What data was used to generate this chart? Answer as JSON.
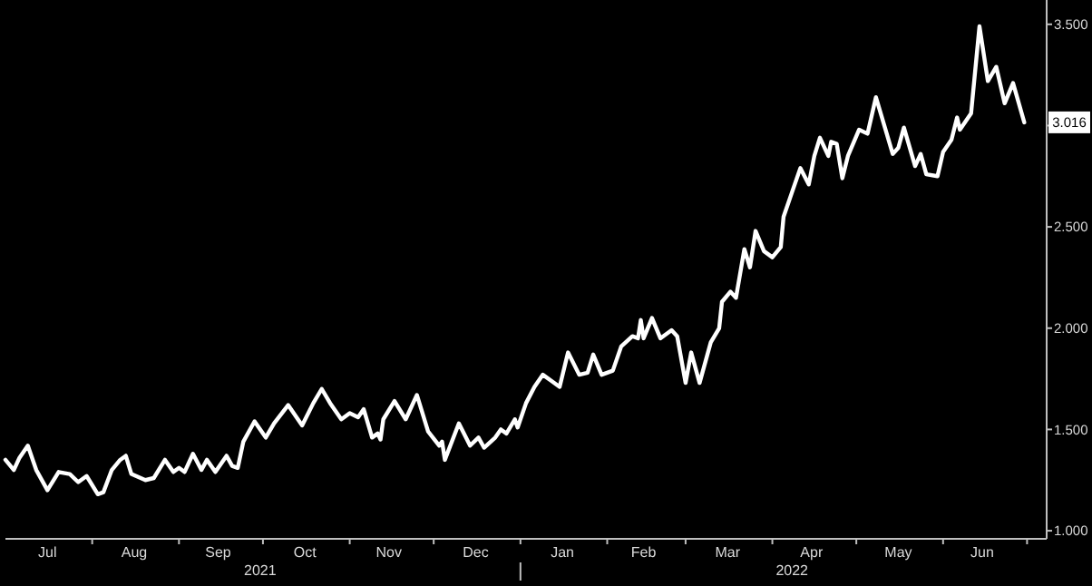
{
  "chart_data": {
    "type": "line",
    "xlim": [
      "2021-07-01",
      "2022-07-08"
    ],
    "ylim": [
      0.96,
      3.62
    ],
    "yticks": [
      {
        "value": 1,
        "label": "1.000"
      },
      {
        "value": 1.5,
        "label": "1.500"
      },
      {
        "value": 2,
        "label": "2.000"
      },
      {
        "value": 2.5,
        "label": "2.500"
      },
      {
        "value": 3,
        "label": null
      },
      {
        "value": 3.5,
        "label": "3.500"
      }
    ],
    "xticks": [
      {
        "value": "2021-07-16",
        "label": "Jul"
      },
      {
        "value": "2021-08-01",
        "label": null
      },
      {
        "value": "2021-08-16",
        "label": "Aug"
      },
      {
        "value": "2021-09-01",
        "label": null
      },
      {
        "value": "2021-09-15",
        "label": "Sep"
      },
      {
        "value": "2021-10-01",
        "label": null
      },
      {
        "value": "2021-10-16",
        "label": "Oct"
      },
      {
        "value": "2021-11-01",
        "label": null
      },
      {
        "value": "2021-11-15",
        "label": "Nov"
      },
      {
        "value": "2021-12-01",
        "label": null
      },
      {
        "value": "2021-12-16",
        "label": "Dec"
      },
      {
        "value": "2022-01-01",
        "label": null
      },
      {
        "value": "2022-01-16",
        "label": "Jan"
      },
      {
        "value": "2022-02-01",
        "label": null
      },
      {
        "value": "2022-02-14",
        "label": "Feb"
      },
      {
        "value": "2022-03-01",
        "label": null
      },
      {
        "value": "2022-03-16",
        "label": "Mar"
      },
      {
        "value": "2022-04-01",
        "label": null
      },
      {
        "value": "2022-04-15",
        "label": "Apr"
      },
      {
        "value": "2022-05-01",
        "label": null
      },
      {
        "value": "2022-05-16",
        "label": "May"
      },
      {
        "value": "2022-06-01",
        "label": null
      },
      {
        "value": "2022-06-15",
        "label": "Jun"
      },
      {
        "value": "2022-07-01",
        "label": null
      }
    ],
    "x2lim": [
      "2021-07-01",
      "2022-07-08"
    ],
    "x2ticks": [
      {
        "value": "2021-09-30",
        "label": "2021"
      },
      {
        "value": "2022-01-01",
        "label": null
      },
      {
        "value": "2022-04-08",
        "label": "2022"
      }
    ],
    "grid": false,
    "marker": "none",
    "line_style": "solid",
    "annotations": [
      {
        "text": "3.016",
        "x": "2022-06-30",
        "y": 3.016
      }
    ],
    "x": [
      "2021-07-01",
      "2021-07-04",
      "2021-07-06",
      "2021-07-09",
      "2021-07-12",
      "2021-07-16",
      "2021-07-20",
      "2021-07-24",
      "2021-07-27",
      "2021-07-30",
      "2021-08-03",
      "2021-08-05",
      "2021-08-08",
      "2021-08-11",
      "2021-08-13",
      "2021-08-15",
      "2021-08-20",
      "2021-08-23",
      "2021-08-27",
      "2021-08-30",
      "2021-09-01",
      "2021-09-03",
      "2021-09-06",
      "2021-09-09",
      "2021-09-11",
      "2021-09-14",
      "2021-09-18",
      "2021-09-20",
      "2021-09-22",
      "2021-09-24",
      "2021-09-28",
      "2021-10-02",
      "2021-10-05",
      "2021-10-10",
      "2021-10-15",
      "2021-10-19",
      "2021-10-22",
      "2021-10-25",
      "2021-10-29",
      "2021-11-01",
      "2021-11-04",
      "2021-11-06",
      "2021-11-09",
      "2021-11-11",
      "2021-11-12",
      "2021-11-13",
      "2021-11-17",
      "2021-11-21",
      "2021-11-25",
      "2021-11-29",
      "2021-12-03",
      "2021-12-04",
      "2021-12-05",
      "2021-12-10",
      "2021-12-14",
      "2021-12-17",
      "2021-12-19",
      "2021-12-23",
      "2021-12-25",
      "2021-12-27",
      "2021-12-30",
      "2021-12-31",
      "2022-01-03",
      "2022-01-06",
      "2022-01-09",
      "2022-01-12",
      "2022-01-13",
      "2022-01-15",
      "2022-01-18",
      "2022-01-22",
      "2022-01-25",
      "2022-01-27",
      "2022-01-30",
      "2022-02-03",
      "2022-02-06",
      "2022-02-10",
      "2022-02-12",
      "2022-02-13",
      "2022-02-14",
      "2022-02-17",
      "2022-02-20",
      "2022-02-24",
      "2022-02-26",
      "2022-03-01",
      "2022-03-03",
      "2022-03-06",
      "2022-03-10",
      "2022-03-13",
      "2022-03-14",
      "2022-03-17",
      "2022-03-19",
      "2022-03-22",
      "2022-03-24",
      "2022-03-26",
      "2022-03-29",
      "2022-04-01",
      "2022-04-04",
      "2022-04-05",
      "2022-04-08",
      "2022-04-11",
      "2022-04-14",
      "2022-04-16",
      "2022-04-18",
      "2022-04-21",
      "2022-04-22",
      "2022-04-24",
      "2022-04-26",
      "2022-04-28",
      "2022-05-02",
      "2022-05-05",
      "2022-05-08",
      "2022-05-11",
      "2022-05-14",
      "2022-05-16",
      "2022-05-18",
      "2022-05-22",
      "2022-05-24",
      "2022-05-26",
      "2022-05-30",
      "2022-06-01",
      "2022-06-04",
      "2022-06-06",
      "2022-06-07",
      "2022-06-11",
      "2022-06-14",
      "2022-06-17",
      "2022-06-20",
      "2022-06-23",
      "2022-06-26",
      "2022-06-30"
    ],
    "series": [
      {
        "color": "#ffffff",
        "values": [
          1.35,
          1.3,
          1.36,
          1.42,
          1.3,
          1.2,
          1.29,
          1.28,
          1.24,
          1.27,
          1.18,
          1.19,
          1.3,
          1.35,
          1.37,
          1.28,
          1.25,
          1.26,
          1.35,
          1.29,
          1.31,
          1.29,
          1.38,
          1.3,
          1.35,
          1.29,
          1.37,
          1.32,
          1.31,
          1.44,
          1.54,
          1.46,
          1.53,
          1.62,
          1.52,
          1.63,
          1.7,
          1.63,
          1.55,
          1.58,
          1.56,
          1.6,
          1.46,
          1.48,
          1.45,
          1.55,
          1.64,
          1.55,
          1.67,
          1.49,
          1.42,
          1.44,
          1.35,
          1.53,
          1.42,
          1.46,
          1.41,
          1.46,
          1.5,
          1.48,
          1.55,
          1.51,
          1.63,
          1.71,
          1.77,
          1.74,
          1.73,
          1.71,
          1.88,
          1.77,
          1.78,
          1.87,
          1.77,
          1.79,
          1.91,
          1.96,
          1.95,
          2.04,
          1.95,
          2.05,
          1.95,
          1.99,
          1.96,
          1.73,
          1.88,
          1.73,
          1.93,
          2.0,
          2.13,
          2.18,
          2.15,
          2.39,
          2.3,
          2.48,
          2.38,
          2.35,
          2.4,
          2.55,
          2.67,
          2.79,
          2.71,
          2.85,
          2.94,
          2.85,
          2.92,
          2.91,
          2.74,
          2.85,
          2.98,
          2.96,
          3.14,
          3.0,
          2.86,
          2.89,
          2.99,
          2.8,
          2.86,
          2.76,
          2.75,
          2.87,
          2.93,
          3.04,
          2.98,
          3.06,
          3.49,
          3.22,
          3.29,
          3.11,
          3.21,
          3.016
        ]
      }
    ]
  }
}
